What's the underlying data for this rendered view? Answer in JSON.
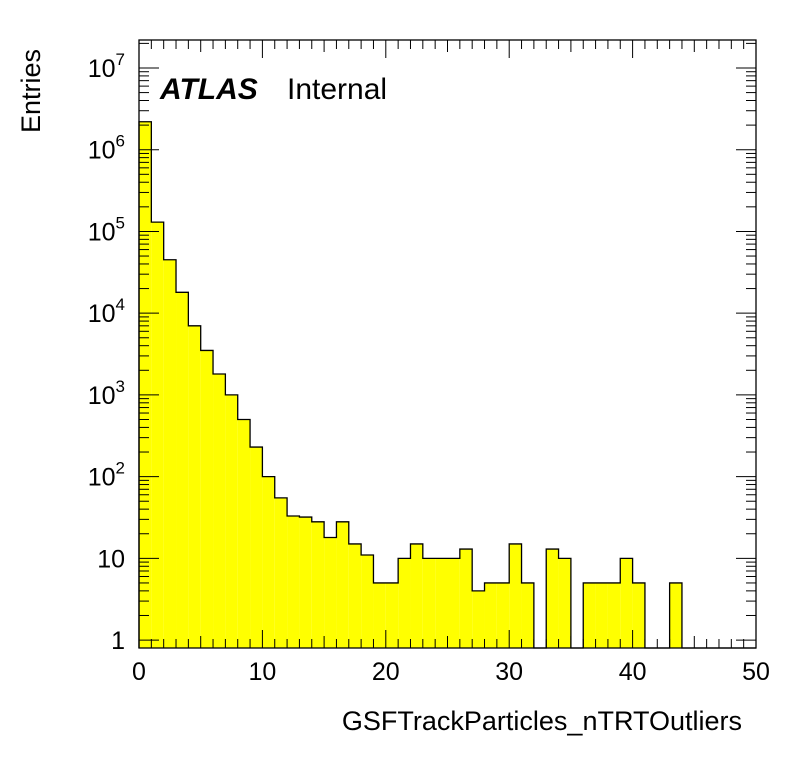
{
  "chart_data": {
    "type": "histogram",
    "xlabel": "GSFTrackParticles_nTRTOutliers",
    "ylabel": "Entries",
    "label": {
      "experiment": "ATLAS",
      "status": "Internal"
    },
    "xlim": [
      0,
      50
    ],
    "ylim": [
      0.8,
      22000000
    ],
    "log_y": true,
    "fill_color": "#ffff00",
    "line_color": "#000000",
    "x_ticks": [
      "0",
      "10",
      "20",
      "30",
      "40",
      "50"
    ],
    "y_ticks": [
      {
        "value": 1,
        "base": "1",
        "exp": ""
      },
      {
        "value": 10,
        "base": "10",
        "exp": ""
      },
      {
        "value": 100,
        "base": "10",
        "exp": "2"
      },
      {
        "value": 1000,
        "base": "10",
        "exp": "3"
      },
      {
        "value": 10000,
        "base": "10",
        "exp": "4"
      },
      {
        "value": 100000,
        "base": "10",
        "exp": "5"
      },
      {
        "value": 1000000,
        "base": "10",
        "exp": "6"
      },
      {
        "value": 10000000,
        "base": "10",
        "exp": "7"
      }
    ],
    "bin_width": 1,
    "bin_starts": [
      0,
      1,
      2,
      3,
      4,
      5,
      6,
      7,
      8,
      9,
      10,
      11,
      12,
      13,
      14,
      15,
      16,
      17,
      18,
      19,
      20,
      21,
      22,
      23,
      24,
      25,
      26,
      27,
      28,
      29,
      30,
      31,
      32,
      33,
      34,
      35,
      36,
      37,
      38,
      39,
      40,
      41,
      42,
      43,
      44,
      45,
      46,
      47,
      48,
      49
    ],
    "values": [
      2200000,
      130000,
      45000,
      18000,
      7000,
      3500,
      1800,
      1000,
      500,
      230,
      100,
      55,
      33,
      32,
      28,
      18,
      28,
      15,
      11,
      5,
      5,
      10,
      15,
      10,
      10,
      10,
      13,
      4,
      5,
      5,
      15,
      5,
      0,
      13,
      10,
      0,
      5,
      5,
      5,
      10,
      5,
      0,
      0,
      5,
      0,
      0,
      0,
      0,
      0,
      0
    ]
  }
}
